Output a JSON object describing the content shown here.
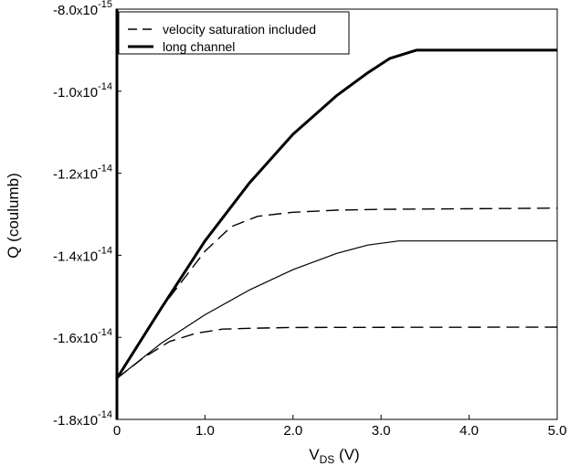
{
  "chart_data": {
    "type": "line",
    "xlabel": {
      "main": "V",
      "sub": "DS",
      "rest": " (V)"
    },
    "ylabel": "Q (coulumb)",
    "xlim": [
      0,
      5
    ],
    "ylim": [
      -1.8e-14,
      -8e-15
    ],
    "x_ticks": [
      {
        "value": 0,
        "label": "0"
      },
      {
        "value": 1,
        "label": "1.0"
      },
      {
        "value": 2,
        "label": "2.0"
      },
      {
        "value": 3,
        "label": "3.0"
      },
      {
        "value": 4,
        "label": "4.0"
      },
      {
        "value": 5,
        "label": "5.0"
      }
    ],
    "y_ticks": [
      {
        "value": -8e-15,
        "mantissa": "-8.0",
        "times": "x",
        "base": "10",
        "exp": "-15"
      },
      {
        "value": -1e-14,
        "mantissa": "-1.0",
        "times": "x",
        "base": "10",
        "exp": "-14"
      },
      {
        "value": -1.2e-14,
        "mantissa": "-1.2",
        "times": "x",
        "base": "10",
        "exp": "-14"
      },
      {
        "value": -1.4e-14,
        "mantissa": "-1.4",
        "times": "x",
        "base": "10",
        "exp": "-14"
      },
      {
        "value": -1.6e-14,
        "mantissa": "-1.6",
        "times": "x",
        "base": "10",
        "exp": "-14"
      },
      {
        "value": -1.8e-14,
        "mantissa": "-1.8",
        "times": "x",
        "base": "10",
        "exp": "-14"
      }
    ],
    "legend": {
      "position": "top-left",
      "entries": [
        {
          "label": "velocity saturation included",
          "style": "dashed"
        },
        {
          "label": "long channel",
          "style": "solid-thick"
        }
      ]
    },
    "series": [
      {
        "style": "solid-thick",
        "x": [
          0,
          0.5,
          1.0,
          1.5,
          2.0,
          2.5,
          2.85,
          3.1,
          3.4,
          5.0
        ],
        "y": [
          -1.7e-14,
          -1.53e-14,
          -1.365e-14,
          -1.225e-14,
          -1.105e-14,
          -1.01e-14,
          -9.55e-15,
          -9.2e-15,
          -9e-15,
          -9e-15
        ]
      },
      {
        "style": "dashed",
        "x": [
          0,
          0.5,
          1.0,
          1.3,
          1.6,
          2.0,
          2.5,
          3.0,
          5.0
        ],
        "y": [
          -1.7e-14,
          -1.53e-14,
          -1.39e-14,
          -1.33e-14,
          -1.305e-14,
          -1.295e-14,
          -1.29e-14,
          -1.288e-14,
          -1.285e-14
        ]
      },
      {
        "style": "solid-thin",
        "x": [
          0,
          0.5,
          1.0,
          1.5,
          2.0,
          2.5,
          2.85,
          3.2,
          5.0
        ],
        "y": [
          -1.7e-14,
          -1.615e-14,
          -1.545e-14,
          -1.485e-14,
          -1.435e-14,
          -1.395e-14,
          -1.375e-14,
          -1.365e-14,
          -1.365e-14
        ]
      },
      {
        "style": "dashed",
        "x": [
          0,
          0.3,
          0.6,
          0.9,
          1.2,
          1.5,
          2.0,
          5.0
        ],
        "y": [
          -1.7e-14,
          -1.65e-14,
          -1.61e-14,
          -1.59e-14,
          -1.58e-14,
          -1.578e-14,
          -1.576e-14,
          -1.575e-14
        ]
      }
    ],
    "grid": false
  }
}
